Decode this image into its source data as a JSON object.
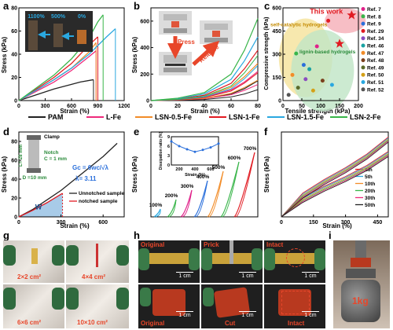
{
  "panels": {
    "a": "a",
    "b": "b",
    "c": "c",
    "d": "d",
    "e": "e",
    "f": "f",
    "g": "g",
    "h": "h",
    "i": "i"
  },
  "legend": [
    {
      "label": "PAM",
      "color": "#222222"
    },
    {
      "label": "L-Fe",
      "color": "#ee2a7b"
    },
    {
      "label": "LSN-0.5-Fe",
      "color": "#f28c28"
    },
    {
      "label": "LSN-1-Fe",
      "color": "#e11b22"
    },
    {
      "label": "LSN-1.5-Fe",
      "color": "#2aa8e0"
    },
    {
      "label": "LSN-2-Fe",
      "color": "#39b54a"
    }
  ],
  "chart_a": {
    "ylabel": "Stress (kPa)",
    "xlabel": "Strain (%)",
    "xticks": [
      "0",
      "300",
      "600",
      "900",
      "1200"
    ],
    "yticks": [
      "0",
      "20",
      "40",
      "60",
      "80"
    ],
    "inset_labels": [
      "1100%",
      "500%",
      "0%"
    ],
    "chart_data": {
      "type": "line",
      "xlim": [
        0,
        1200
      ],
      "ylim": [
        0,
        80
      ],
      "series": [
        {
          "name": "PAM",
          "x": [
            0,
            200,
            400,
            600,
            700,
            850
          ],
          "y": [
            0,
            5,
            10,
            14,
            16,
            18
          ]
        },
        {
          "name": "L-Fe",
          "x": [
            0,
            200,
            400,
            600,
            800,
            880
          ],
          "y": [
            0,
            8,
            16,
            26,
            38,
            43
          ]
        },
        {
          "name": "LSN-0.5-Fe",
          "x": [
            0,
            200,
            400,
            600,
            800,
            880
          ],
          "y": [
            0,
            9,
            18,
            28,
            42,
            50
          ]
        },
        {
          "name": "LSN-1-Fe",
          "x": [
            0,
            200,
            400,
            600,
            800,
            900
          ],
          "y": [
            0,
            10,
            20,
            32,
            48,
            55
          ]
        },
        {
          "name": "LSN-1.5-Fe",
          "x": [
            0,
            200,
            400,
            600,
            800,
            1000,
            1100
          ],
          "y": [
            0,
            9,
            18,
            28,
            40,
            55,
            62
          ]
        },
        {
          "name": "LSN-2-Fe",
          "x": [
            0,
            200,
            400,
            600,
            800,
            900,
            960
          ],
          "y": [
            0,
            11,
            22,
            36,
            54,
            68,
            74
          ]
        }
      ]
    }
  },
  "chart_b": {
    "ylabel": "Stress (kPa)",
    "xlabel": "Strain (%)",
    "xticks": [
      "0",
      "20",
      "40",
      "60",
      "80"
    ],
    "yticks": [
      "0",
      "200",
      "400",
      "600"
    ],
    "press": "Press",
    "release": "Release",
    "chart_data": {
      "type": "line",
      "xlim": [
        0,
        80
      ],
      "ylim": [
        0,
        700
      ],
      "series": [
        {
          "name": "PAM",
          "x": [
            0,
            20,
            40,
            60,
            70,
            80
          ],
          "y": [
            0,
            5,
            15,
            50,
            90,
            150
          ]
        },
        {
          "name": "L-Fe",
          "x": [
            0,
            20,
            40,
            60,
            70,
            80
          ],
          "y": [
            0,
            8,
            25,
            80,
            140,
            220
          ]
        },
        {
          "name": "LSN-0.5-Fe",
          "x": [
            0,
            20,
            40,
            60,
            70,
            80
          ],
          "y": [
            0,
            10,
            30,
            100,
            180,
            280
          ]
        },
        {
          "name": "LSN-1-Fe",
          "x": [
            0,
            20,
            40,
            60,
            70,
            80
          ],
          "y": [
            0,
            12,
            40,
            130,
            240,
            380
          ]
        },
        {
          "name": "LSN-1.5-Fe",
          "x": [
            0,
            20,
            40,
            60,
            70,
            80
          ],
          "y": [
            0,
            15,
            50,
            160,
            300,
            480
          ]
        },
        {
          "name": "LSN-2-Fe",
          "x": [
            0,
            20,
            40,
            60,
            70,
            80
          ],
          "y": [
            0,
            18,
            60,
            200,
            380,
            620
          ]
        }
      ]
    }
  },
  "chart_c": {
    "ylabel": "Compressive strength (kPa)",
    "xlabel": "Tensile strength (kPa)",
    "xticks": [
      "0",
      "50",
      "100",
      "150",
      "200"
    ],
    "yticks": [
      "0",
      "150",
      "300",
      "450",
      "600"
    ],
    "this_work": "This work",
    "region1": "self-catalytic hydrogels",
    "region2": "lignin-based hydrogels",
    "refs": [
      "Ref. 7",
      "Ref. 8",
      "Ref. 9",
      "Ref. 29",
      "Ref. 34",
      "Ref. 46",
      "Ref. 47",
      "Ref. 48",
      "Ref. 49",
      "Ref. 50",
      "Ref. 51",
      "Ref. 52"
    ],
    "ref_colors": [
      "#e0218a",
      "#39b54a",
      "#2a6fdb",
      "#e11b22",
      "#8a4dbf",
      "#1aa3a3",
      "#f28c28",
      "#7a3f1d",
      "#5b6b2a",
      "#d4a017",
      "#2aa8e0",
      "#555555"
    ],
    "chart_data": {
      "type": "scatter",
      "xlim": [
        0,
        200
      ],
      "ylim": [
        0,
        650
      ],
      "points": [
        {
          "name": "This work",
          "x": 182,
          "y": 600
        },
        {
          "name": "LSN-1.5-Fe",
          "x": 150,
          "y": 400
        },
        {
          "name": "Ref. 7",
          "x": 90,
          "y": 380
        },
        {
          "name": "Ref. 8",
          "x": 35,
          "y": 330
        },
        {
          "name": "Ref. 9",
          "x": 55,
          "y": 250
        },
        {
          "name": "Ref. 29",
          "x": 120,
          "y": 560
        },
        {
          "name": "Ref. 34",
          "x": 60,
          "y": 150
        },
        {
          "name": "Ref. 46",
          "x": 70,
          "y": 220
        },
        {
          "name": "Ref. 47",
          "x": 25,
          "y": 180
        },
        {
          "name": "Ref. 48",
          "x": 105,
          "y": 140
        },
        {
          "name": "Ref. 49",
          "x": 40,
          "y": 90
        },
        {
          "name": "Ref. 50",
          "x": 80,
          "y": 70
        },
        {
          "name": "Ref. 51",
          "x": 130,
          "y": 110
        },
        {
          "name": "Ref. 52",
          "x": 15,
          "y": 40
        }
      ]
    }
  },
  "chart_d": {
    "ylabel": "Stress (kPa)",
    "xlabel": "Strain (%)",
    "xticks": [
      "0",
      "300",
      "600"
    ],
    "yticks": [
      "0",
      "20",
      "40",
      "60",
      "80"
    ],
    "clamp": "Clamp",
    "l_label": "L= 28 mm",
    "notch": "Notch",
    "c_label": "C = 1 mm",
    "d_label": "D =10 mm",
    "formula_g": "G",
    "formula_sub": "c",
    "formula_eq": "=",
    "formula_num": "6wc",
    "formula_den": "√λ",
    "lambda": "λ= 3.11",
    "w_label": "W",
    "legend": [
      "Unnotched sample",
      "notched sample"
    ],
    "chart_data": {
      "type": "line",
      "xlim": [
        0,
        750
      ],
      "ylim": [
        0,
        90
      ],
      "series": [
        {
          "name": "Unnotched sample",
          "x": [
            0,
            100,
            200,
            300,
            400,
            500,
            600,
            700
          ],
          "y": [
            0,
            8,
            18,
            28,
            40,
            52,
            64,
            78
          ]
        },
        {
          "name": "notched sample",
          "x": [
            0,
            100,
            200,
            300,
            311
          ],
          "y": [
            0,
            7,
            15,
            24,
            25
          ]
        }
      ]
    }
  },
  "chart_e": {
    "ylabel": "Stress (kPa)",
    "xlabel": "",
    "curve_labels": [
      "100%",
      "200%",
      "300%",
      "400%",
      "500%",
      "600%",
      "700%"
    ],
    "inset": {
      "ylabel": "Dissipation ratio (%)",
      "xlabel": "Strain (%)",
      "xticks": [
        "200",
        "400",
        "600"
      ],
      "yticks": [
        "0",
        "3",
        "6",
        "9"
      ]
    },
    "chart_data": {
      "type": "line",
      "series": [
        {
          "name": "Dissipation ratio",
          "x": [
            100,
            200,
            300,
            400,
            500,
            600,
            700
          ],
          "y": [
            7.5,
            6.0,
            5.0,
            4.2,
            4.8,
            5.6,
            6.8
          ]
        }
      ]
    }
  },
  "chart_f": {
    "ylabel": "Stress (kPa)",
    "xlabel": "Strain (%)",
    "xticks": [
      "0",
      "150",
      "300",
      "450"
    ],
    "cycles": [
      {
        "label": "1th",
        "color": "#e11b22"
      },
      {
        "label": "5th",
        "color": "#2aa8e0"
      },
      {
        "label": "10th",
        "color": "#f28c28"
      },
      {
        "label": "20th",
        "color": "#39b54a"
      },
      {
        "label": "30th",
        "color": "#ee2a7b"
      },
      {
        "label": "50th",
        "color": "#222222"
      }
    ],
    "chart_data": {
      "type": "line",
      "xlim": [
        0,
        500
      ],
      "ylim": [
        0,
        50
      ],
      "series": [
        {
          "name": "1th",
          "x": [
            0,
            100,
            200,
            300,
            400,
            500
          ],
          "y": [
            0,
            14,
            22,
            29,
            37,
            47
          ]
        }
      ]
    }
  },
  "photos_g": [
    "2×2 cm²",
    "4×4 cm²",
    "6×6 cm²",
    "10×10 cm²"
  ],
  "photos_h": {
    "top": [
      "Original",
      "Prick",
      "Intact"
    ],
    "bottom": [
      "Original",
      "Cut",
      "Intact"
    ],
    "scale": "1 cm"
  },
  "photo_i": {
    "weight": "1kg"
  }
}
